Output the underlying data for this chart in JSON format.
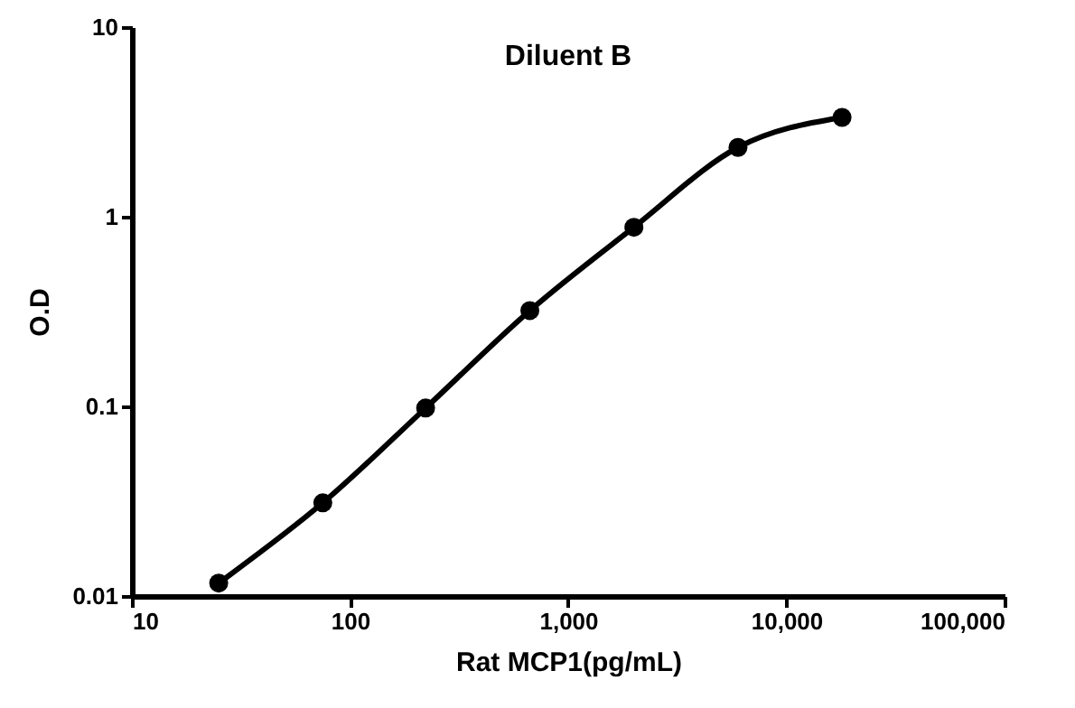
{
  "chart_data": {
    "type": "line",
    "title": "Diluent B",
    "xlabel": "Rat MCP1(pg/mL)",
    "ylabel": "O.D",
    "log": "xy",
    "x": [
      25,
      75,
      222,
      667,
      2000,
      6000,
      18000
    ],
    "series": [
      {
        "color": "#000000",
        "values": [
          0.0117,
          0.031,
          0.098,
          0.32,
          0.88,
          2.32,
          3.34
        ]
      }
    ],
    "xlim": [
      10,
      100000
    ],
    "xticks": [
      10,
      100,
      {
        "value": 1000,
        "label": "1,000"
      },
      {
        "value": 10000,
        "label": "10,000"
      },
      {
        "value": 100000,
        "label": "100,000"
      }
    ],
    "ylim": [
      0.01,
      10
    ],
    "yticks": [
      0.01,
      0.1,
      1,
      10
    ],
    "marker": "circle",
    "line_style": "solid",
    "grid": false
  }
}
